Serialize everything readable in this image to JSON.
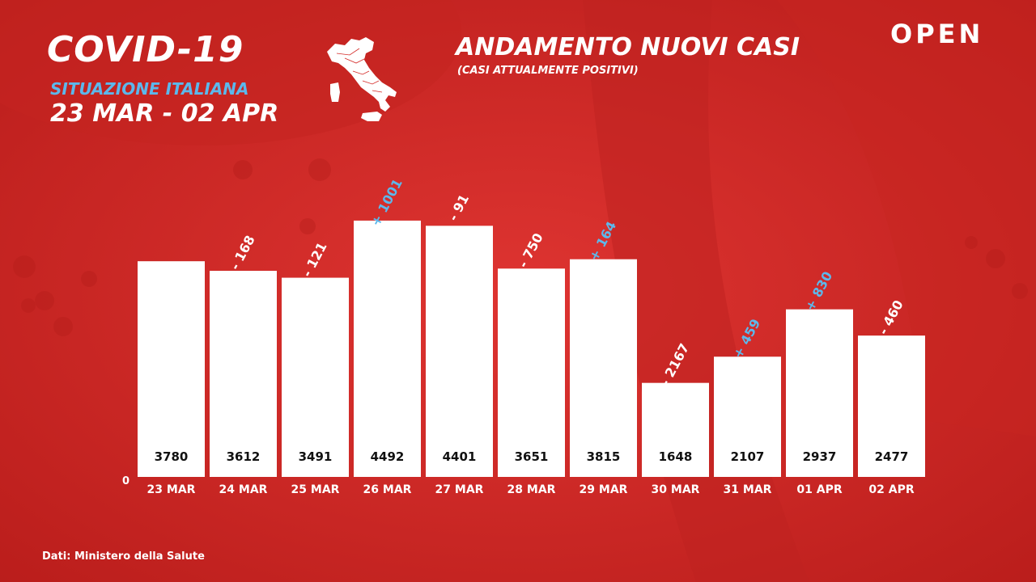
{
  "header": {
    "title": "COVID-19",
    "subtitle": "SITUAZIONE ITALIANA",
    "date_range": "23 MAR - 02 APR",
    "map_icon": "italy-map-icon"
  },
  "brand": {
    "name": "OPEN"
  },
  "footer": {
    "source": "Dati: Ministero della Salute"
  },
  "colors": {
    "background": "#d42a27",
    "bar": "#ffffff",
    "positive_delta": "#5cb8ec",
    "negative_delta": "#ffffff",
    "value_text": "#111111"
  },
  "chart_data": {
    "type": "bar",
    "title": "ANDAMENTO NUOVI CASI",
    "subtitle": "(CASI ATTUALMENTE POSITIVI)",
    "categories": [
      "23 MAR",
      "24 MAR",
      "25 MAR",
      "26 MAR",
      "27 MAR",
      "28 MAR",
      "29 MAR",
      "30 MAR",
      "31 MAR",
      "01 APR",
      "02 APR"
    ],
    "values": [
      3780,
      3612,
      3491,
      4492,
      4401,
      3651,
      3815,
      1648,
      2107,
      2937,
      2477
    ],
    "value_labels": [
      "3780",
      "3612",
      "3491",
      "4492",
      "4401",
      "3651",
      "3815",
      "1648",
      "2107",
      "2937",
      "2477"
    ],
    "deltas": [
      "",
      "- 168",
      "- 121",
      "+ 1001",
      "- 91",
      "- 750",
      "+ 164",
      "- 2167",
      "+ 459",
      "+ 830",
      "- 460"
    ],
    "delta_signs": [
      0,
      -1,
      -1,
      1,
      -1,
      -1,
      1,
      -1,
      1,
      1,
      -1
    ],
    "y_tick_zero": "0",
    "ylim": [
      0,
      5100
    ],
    "grid": false,
    "legend": "none"
  }
}
